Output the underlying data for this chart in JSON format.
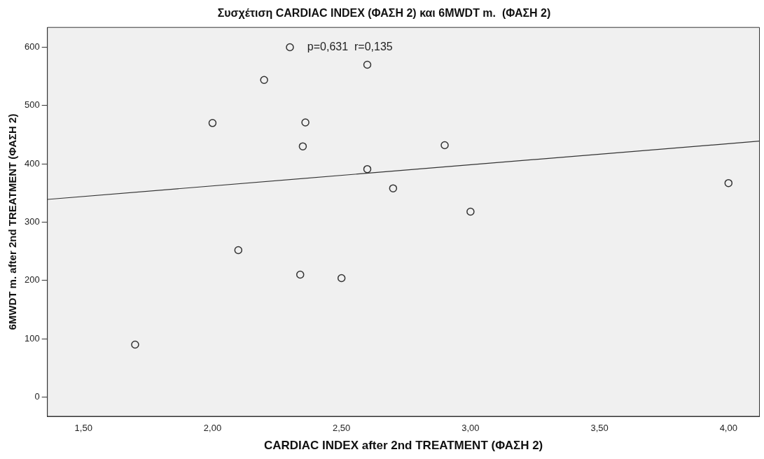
{
  "chart_data": {
    "type": "scatter",
    "title": "Συσχέτιση CARDIAC INDEX (ΦΑΣΗ 2) και 6MWDT m.  (ΦΑΣΗ 2)",
    "xlabel": "CARDIAC INDEX after 2nd TREATMENT (ΦΑΣΗ 2)",
    "ylabel": "6MWDT m. after 2nd TREATMENT (ΦΑΣΗ 2)",
    "annotations": [
      "p=0,631  r=0,135"
    ],
    "series": [
      {
        "type": "scatter",
        "color": "#333333",
        "marker": "circle",
        "x": [
          2.3,
          2.2,
          2.0,
          2.36,
          2.35,
          2.6,
          2.6,
          2.1,
          2.34,
          2.5,
          1.7,
          2.9,
          2.7,
          3.0,
          4.0
        ],
        "values": [
          600,
          544,
          470,
          471,
          430,
          391,
          570,
          252,
          210,
          204,
          90,
          432,
          358,
          318,
          367
        ]
      },
      {
        "type": "line",
        "color": "#333333",
        "marker": "none",
        "x": [
          1.36,
          4.12
        ],
        "values": [
          339,
          439
        ]
      }
    ],
    "xlim": [
      1.36,
      4.12
    ],
    "xticks": [
      {
        "value": 1.5,
        "label": "1,50"
      },
      {
        "value": 2,
        "label": "2,00"
      },
      {
        "value": 2.5,
        "label": "2,50"
      },
      {
        "value": 3,
        "label": "3,00"
      },
      {
        "value": 3.5,
        "label": "3,50"
      },
      {
        "value": 4,
        "label": "4,00"
      }
    ],
    "ylim": [
      -33,
      634
    ],
    "yticks": [
      0,
      100,
      200,
      300,
      400,
      500,
      600
    ],
    "grid": false,
    "legend": false
  }
}
